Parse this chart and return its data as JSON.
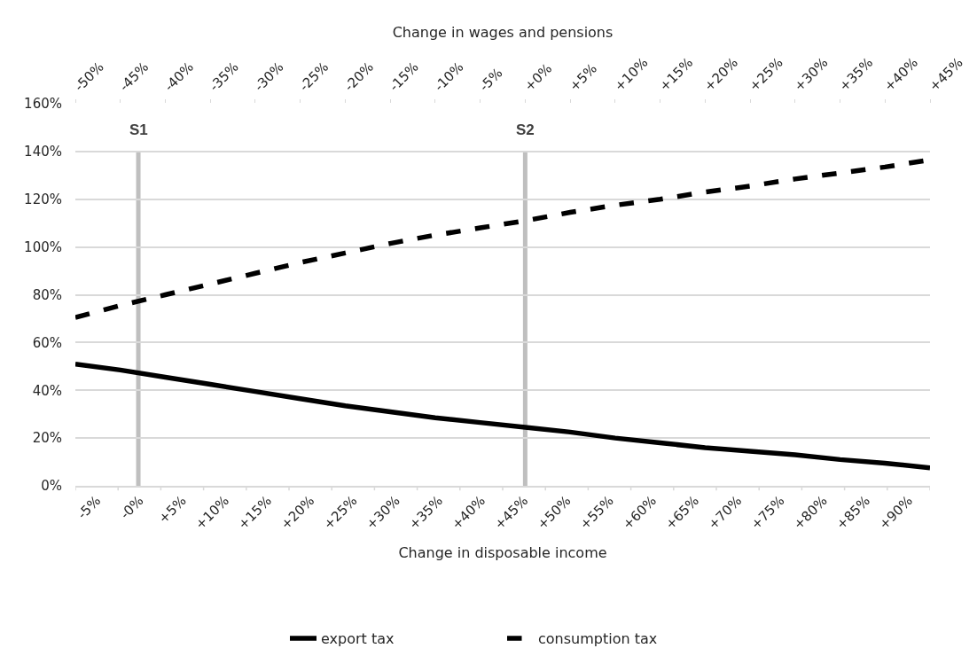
{
  "chart_data": {
    "type": "line",
    "xlabel": "Change in wages and pensions",
    "x2label": "Change in disposable income",
    "xlim": [
      -50,
      45
    ],
    "xticks": [
      {
        "value": -50,
        "label": "-50%"
      },
      {
        "value": -45,
        "label": "-45%"
      },
      {
        "value": -40,
        "label": "-40%"
      },
      {
        "value": -35,
        "label": "-35%"
      },
      {
        "value": -30,
        "label": "-30%"
      },
      {
        "value": -25,
        "label": "-25%"
      },
      {
        "value": -20,
        "label": "-20%"
      },
      {
        "value": -15,
        "label": "-15%"
      },
      {
        "value": -10,
        "label": "-10%"
      },
      {
        "value": -5,
        "label": "-5%"
      },
      {
        "value": 0,
        "label": "+0%"
      },
      {
        "value": 5,
        "label": "+5%"
      },
      {
        "value": 10,
        "label": "+10%"
      },
      {
        "value": 15,
        "label": "+15%"
      },
      {
        "value": 20,
        "label": "+20%"
      },
      {
        "value": 25,
        "label": "+25%"
      },
      {
        "value": 30,
        "label": "+30%"
      },
      {
        "value": 35,
        "label": "+35%"
      },
      {
        "value": 40,
        "label": "+40%"
      },
      {
        "value": 45,
        "label": "+45%"
      }
    ],
    "x2lim": [
      -7.5,
      92.5
    ],
    "x2ticks": [
      {
        "value": -5,
        "label": "-5%"
      },
      {
        "value": 0,
        "label": "-0%"
      },
      {
        "value": 5,
        "label": "+5%"
      },
      {
        "value": 10,
        "label": "+10%"
      },
      {
        "value": 15,
        "label": "+15%"
      },
      {
        "value": 20,
        "label": "+20%"
      },
      {
        "value": 25,
        "label": "+25%"
      },
      {
        "value": 30,
        "label": "+30%"
      },
      {
        "value": 35,
        "label": "+35%"
      },
      {
        "value": 40,
        "label": "+40%"
      },
      {
        "value": 45,
        "label": "+45%"
      },
      {
        "value": 50,
        "label": "+50%"
      },
      {
        "value": 55,
        "label": "+55%"
      },
      {
        "value": 60,
        "label": "+60%"
      },
      {
        "value": 65,
        "label": "+65%"
      },
      {
        "value": 70,
        "label": "+70%"
      },
      {
        "value": 75,
        "label": "+75%"
      },
      {
        "value": 80,
        "label": "+80%"
      },
      {
        "value": 85,
        "label": "+85%"
      },
      {
        "value": 90,
        "label": "+90%"
      }
    ],
    "ylim": [
      0,
      160
    ],
    "yticks": [
      {
        "value": 0,
        "label": "0%"
      },
      {
        "value": 20,
        "label": "20%"
      },
      {
        "value": 40,
        "label": "40%"
      },
      {
        "value": 60,
        "label": "60%"
      },
      {
        "value": 80,
        "label": "80%"
      },
      {
        "value": 100,
        "label": "100%"
      },
      {
        "value": 120,
        "label": "120%"
      },
      {
        "value": 140,
        "label": "140%"
      },
      {
        "value": 160,
        "label": "160%"
      }
    ],
    "x": [
      -50,
      -45,
      -40,
      -35,
      -30,
      -25,
      -20,
      -15,
      -10,
      -5,
      0,
      5,
      10,
      15,
      20,
      25,
      30,
      35,
      40,
      45
    ],
    "series": [
      {
        "name": "export tax",
        "color": "#000000",
        "line_style": "solid",
        "values": [
          51,
          48.5,
          45.5,
          42.5,
          39.5,
          36.5,
          33.5,
          31,
          28.5,
          26.5,
          24.5,
          22.5,
          20,
          18,
          16,
          14.5,
          13,
          11,
          9.5,
          7.5
        ]
      },
      {
        "name": "consumption tax",
        "color": "#000000",
        "line_style": "dashed",
        "values": [
          70.5,
          75.5,
          80,
          84.5,
          89,
          93.5,
          97.5,
          101.5,
          105,
          108,
          111,
          114.5,
          117.5,
          120,
          123,
          125.5,
          128.5,
          131,
          133.5,
          136.5
        ]
      }
    ],
    "ref_lines": [
      {
        "axis": "x",
        "value": -43,
        "label": "S1",
        "color": "#bfbfbf"
      },
      {
        "axis": "x",
        "value": 0,
        "label": "S2",
        "color": "#bfbfbf"
      }
    ],
    "grid": "y",
    "legend": "bottom"
  }
}
